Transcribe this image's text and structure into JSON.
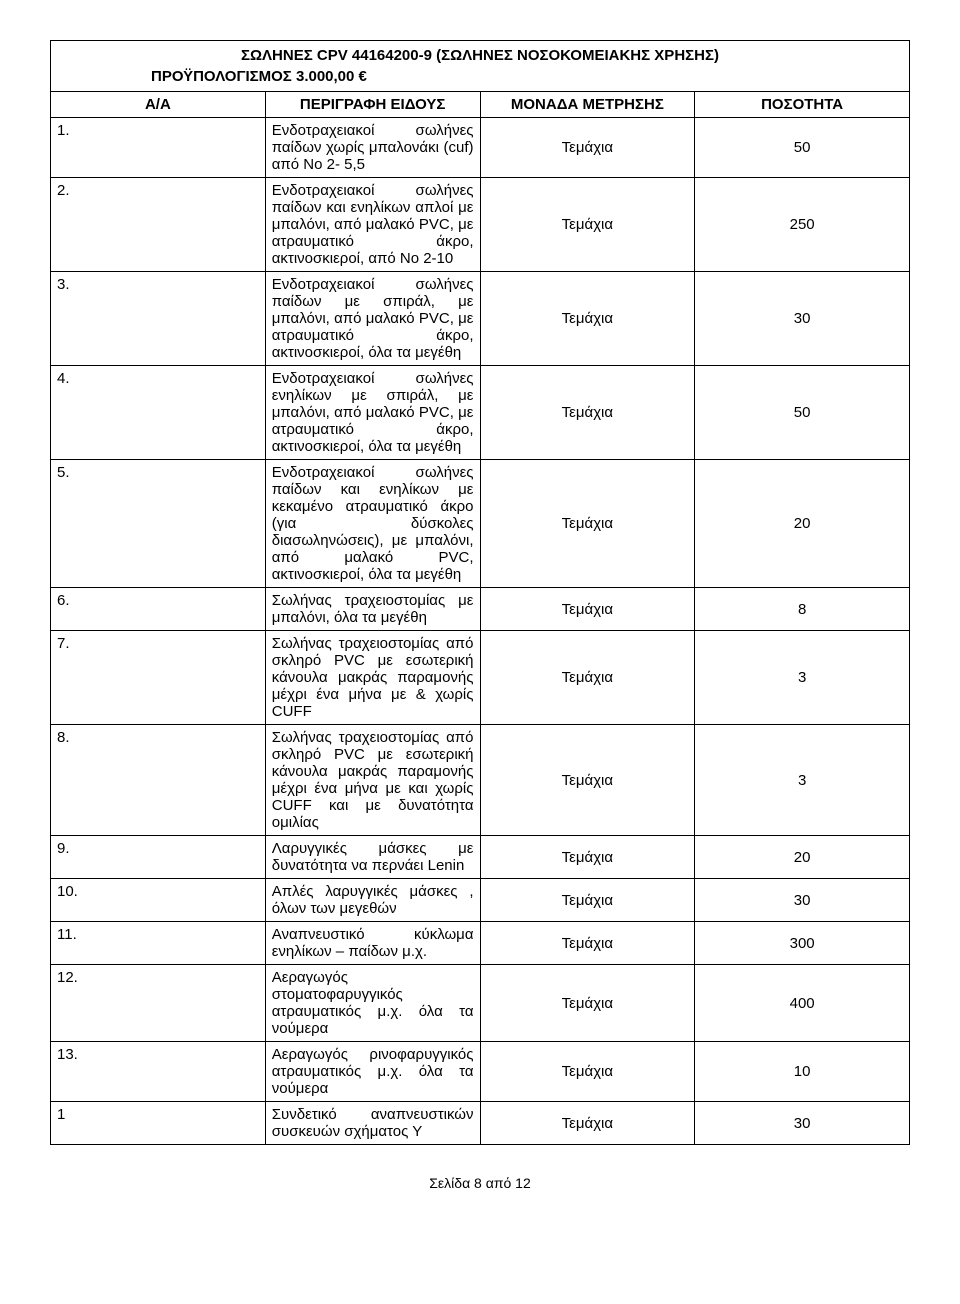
{
  "title": "ΣΩΛΗΝΕΣ CPV 44164200-9 (ΣΩΛΗΝΕΣ ΝΟΣΟΚΟΜΕΙΑΚΗΣ ΧΡΗΣΗΣ)",
  "budget": "ΠΡΟΫΠΟΛΟΓΙΣΜΟΣ  3.000,00 €",
  "headers": {
    "aa": "Α/Α",
    "desc": "ΠΕΡΙΓΡΑΦΗ ΕΙΔΟΥΣ",
    "unit": "ΜΟΝΑΔΑ ΜΕΤΡΗΣΗΣ",
    "qty": "ΠΟΣΟΤΗΤΑ"
  },
  "rows": [
    {
      "aa": "1.",
      "desc": "Ενδοτραχειακοί σωλήνες παίδων χωρίς μπαλονάκι (cuf) από Νο 2- 5,5",
      "unit": "Τεμάχια",
      "qty": "50"
    },
    {
      "aa": "2.",
      "desc": "Ενδοτραχειακοί σωλήνες παίδων και ενηλίκων απλοί με μπαλόνι, από μαλακό PVC, με ατραυματικό άκρο, ακτινοσκιεροί, από Νο 2-10",
      "unit": "Τεμάχια",
      "qty": "250"
    },
    {
      "aa": "3.",
      "desc": "Ενδοτραχειακοί σωλήνες παίδων με σπιράλ, με μπαλόνι, από μαλακό PVC, με ατραυματικό άκρο, ακτινοσκιεροί, όλα τα μεγέθη",
      "unit": "Τεμάχια",
      "qty": "30"
    },
    {
      "aa": "4.",
      "desc": "Ενδοτραχειακοί σωλήνες ενηλίκων με σπιράλ, με μπαλόνι, από μαλακό PVC, με ατραυματικό άκρο, ακτινοσκιεροί, όλα τα μεγέθη",
      "unit": "Τεμάχια",
      "qty": "50"
    },
    {
      "aa": "5.",
      "desc": "Ενδοτραχειακοί σωλήνες παίδων και ενηλίκων με κεκαμένο ατραυματικό άκρο (για δύσκολες διασωληνώσεις), με μπαλόνι, από μαλακό PVC, ακτινοσκιεροί, όλα τα μεγέθη",
      "unit": "Τεμάχια",
      "qty": "20"
    },
    {
      "aa": "6.",
      "desc": "Σωλήνας τραχειοστομίας με μπαλόνι, όλα τα μεγέθη",
      "unit": "Τεμάχια",
      "qty": "8"
    },
    {
      "aa": "7.",
      "desc": "Σωλήνας τραχειοστομίας από σκληρό PVC με εσωτερική κάνουλα μακράς παραμονής μέχρι ένα μήνα με & χωρίς CUFF",
      "unit": "Τεμάχια",
      "qty": "3"
    },
    {
      "aa": "8.",
      "desc": "Σωλήνας τραχειοστομίας από σκληρό PVC με εσωτερική κάνουλα μακράς παραμονής μέχρι ένα μήνα με και χωρίς CUFF και με δυνατότητα ομιλίας",
      "unit": "Τεμάχια",
      "qty": "3"
    },
    {
      "aa": "9.",
      "desc": "Λαρυγγικές μάσκες με δυνατότητα να περνάει Lenin",
      "unit": "Τεμάχια",
      "qty": "20"
    },
    {
      "aa": "10.",
      "desc": "Απλές λαρυγγικές μάσκες , όλων των μεγεθών",
      "unit": "Τεμάχια",
      "qty": "30"
    },
    {
      "aa": "11.",
      "desc": "Αναπνευστικό κύκλωμα ενηλίκων – παίδων μ.χ.",
      "unit": "Τεμάχια",
      "qty": "300"
    },
    {
      "aa": "12.",
      "desc": "Αεραγωγός στοματοφαρυγγικός ατραυματικός  μ.χ.  όλα τα νούμερα",
      "unit": "Τεμάχια",
      "qty": "400"
    },
    {
      "aa": "13.",
      "desc": "Αεραγωγός ρινοφαρυγγικός ατραυματικός μ.χ.  όλα τα νούμερα",
      "unit": "Τεμάχια",
      "qty": "10"
    },
    {
      "aa": "1",
      "desc": "Συνδετικό αναπνευστικών συσκευών σχήματος Υ",
      "unit": "Τεμάχια",
      "qty": "30"
    }
  ],
  "footer": "Σελίδα 8 από 12",
  "style": {
    "font_family": "Arial",
    "font_size_body": 15,
    "font_size_footer": 14,
    "border_color": "#000000",
    "background_color": "#ffffff",
    "text_color": "#000000",
    "col_widths": {
      "aa": 38,
      "unit": 130,
      "qty": 130
    }
  }
}
